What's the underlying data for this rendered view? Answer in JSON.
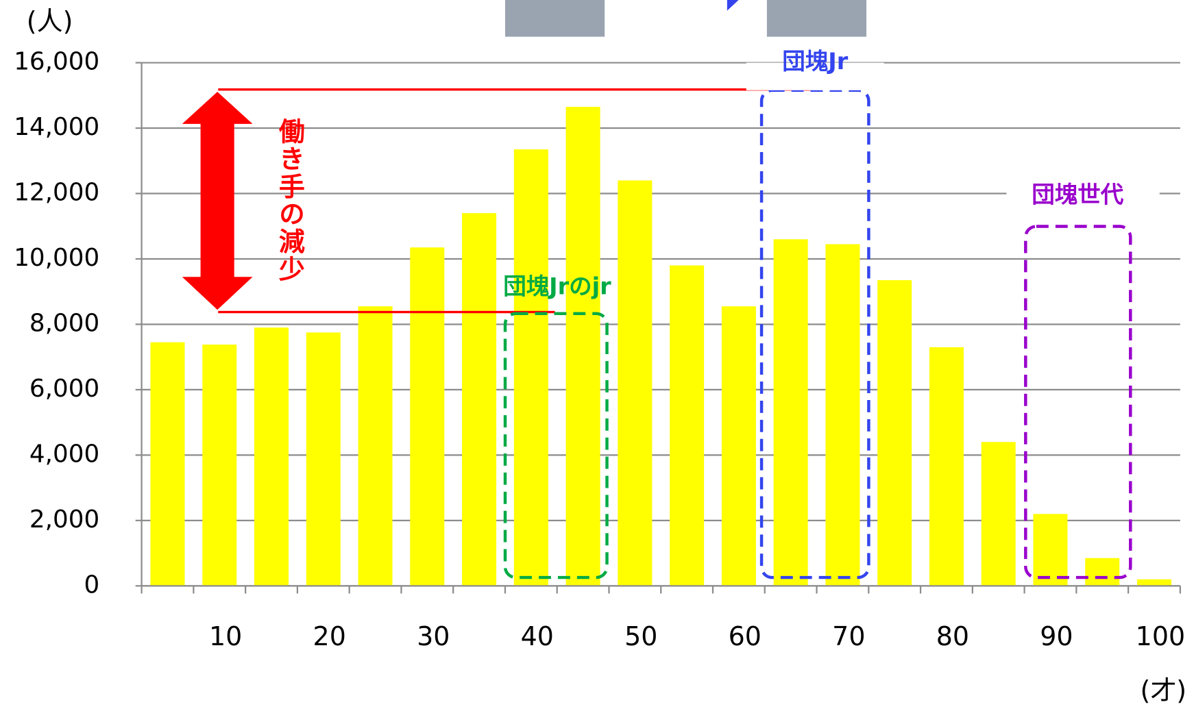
{
  "chart_data": {
    "type": "bar",
    "y_unit_label": "(人)",
    "x_unit_label": "(才)",
    "categories": [
      null,
      "10",
      null,
      "20",
      null,
      "30",
      null,
      "40",
      null,
      "50",
      null,
      "60",
      null,
      "70",
      null,
      "80",
      null,
      "90",
      null,
      "100"
    ],
    "values": [
      7450,
      7380,
      7900,
      7750,
      8550,
      10350,
      11400,
      13350,
      14650,
      12400,
      9800,
      8550,
      10600,
      10450,
      9350,
      7300,
      4400,
      2200,
      850,
      200
    ],
    "color": "#ffff00",
    "ylim": [
      0,
      16000
    ],
    "yticks": [
      {
        "value": 0,
        "label": "0"
      },
      {
        "value": 2000,
        "label": "2,000"
      },
      {
        "value": 4000,
        "label": "4,000"
      },
      {
        "value": 6000,
        "label": "6,000"
      },
      {
        "value": 8000,
        "label": "8,000"
      },
      {
        "value": 10000,
        "label": "10,000"
      },
      {
        "value": 12000,
        "label": "12,000"
      },
      {
        "value": 14000,
        "label": "14,000"
      },
      {
        "value": 16000,
        "label": "16,000"
      }
    ],
    "grid": true,
    "annotations": [
      "働き手の減少",
      "団塊Jr",
      "団塊世代",
      "団塊Jrのjr"
    ]
  }
}
